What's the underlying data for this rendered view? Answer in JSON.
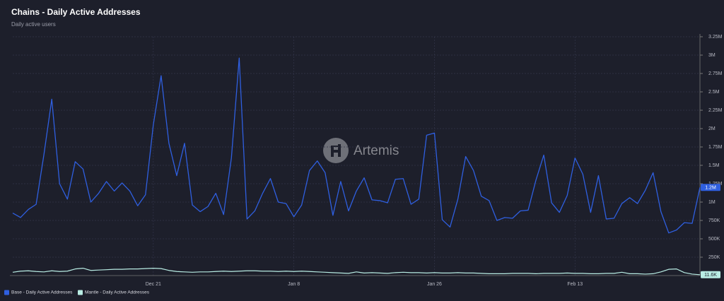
{
  "chart_data": {
    "type": "line",
    "title": "Chains - Daily Active Addresses",
    "subtitle": "Daily active users",
    "watermark": "Artemis",
    "categories": [
      null,
      null,
      null,
      null,
      null,
      null,
      null,
      null,
      null,
      null,
      null,
      null,
      null,
      null,
      null,
      null,
      null,
      null,
      "Dec 21",
      null,
      null,
      null,
      null,
      null,
      null,
      null,
      null,
      null,
      null,
      null,
      null,
      null,
      null,
      null,
      null,
      null,
      "Jan 8",
      null,
      null,
      null,
      null,
      null,
      null,
      null,
      null,
      null,
      null,
      null,
      null,
      null,
      null,
      null,
      null,
      null,
      "Jan 26",
      null,
      null,
      null,
      null,
      null,
      null,
      null,
      null,
      null,
      null,
      null,
      null,
      null,
      null,
      null,
      null,
      null,
      "Feb 13",
      null,
      null,
      null,
      null,
      null,
      null,
      null,
      null,
      null,
      null,
      null,
      null,
      null,
      null,
      null,
      null
    ],
    "series": [
      {
        "name": "Base - Daily Active Addresses",
        "color": "#2f5fe0",
        "values": [
          850000,
          790000,
          900000,
          970000,
          1650000,
          2400000,
          1250000,
          1040000,
          1550000,
          1450000,
          1000000,
          1120000,
          1280000,
          1150000,
          1260000,
          1150000,
          950000,
          1100000,
          2050000,
          2720000,
          1800000,
          1360000,
          1800000,
          960000,
          870000,
          940000,
          1120000,
          830000,
          1600000,
          2960000,
          770000,
          880000,
          1120000,
          1320000,
          1000000,
          980000,
          800000,
          960000,
          1430000,
          1560000,
          1400000,
          820000,
          1280000,
          880000,
          1150000,
          1330000,
          1030000,
          1020000,
          990000,
          1310000,
          1320000,
          970000,
          1040000,
          1910000,
          1940000,
          760000,
          660000,
          1040000,
          1620000,
          1430000,
          1080000,
          1020000,
          750000,
          790000,
          780000,
          880000,
          890000,
          1300000,
          1640000,
          990000,
          860000,
          1090000,
          1600000,
          1380000,
          860000,
          1360000,
          770000,
          780000,
          980000,
          1060000,
          980000,
          1160000,
          1400000,
          870000,
          580000,
          620000,
          720000,
          710000,
          1200000
        ],
        "value_labels": [
          null,
          null,
          null,
          null,
          null,
          null,
          null,
          null,
          null,
          null,
          null,
          null,
          null,
          null,
          null,
          null,
          null,
          null,
          null,
          null,
          null,
          null,
          null,
          null,
          null,
          null,
          null,
          null,
          null,
          null,
          null,
          null,
          null,
          null,
          null,
          null,
          null,
          null,
          null,
          null,
          null,
          null,
          null,
          null,
          null,
          null,
          null,
          null,
          null,
          null,
          null,
          null,
          null,
          null,
          null,
          null,
          null,
          null,
          null,
          null,
          null,
          null,
          null,
          null,
          null,
          null,
          null,
          null,
          null,
          null,
          null,
          null,
          null,
          null,
          null,
          null,
          null,
          null,
          null,
          null,
          null,
          null,
          null,
          null,
          null,
          null,
          null,
          null,
          "1.2M"
        ]
      },
      {
        "name": "Mantle - Daily Active Addresses",
        "color": "#b9ede4",
        "values": [
          45000,
          60000,
          65000,
          55000,
          50000,
          65000,
          55000,
          60000,
          90000,
          100000,
          70000,
          75000,
          80000,
          85000,
          85000,
          90000,
          90000,
          95000,
          100000,
          95000,
          70000,
          55000,
          50000,
          45000,
          50000,
          50000,
          55000,
          60000,
          55000,
          60000,
          65000,
          65000,
          60000,
          60000,
          55000,
          60000,
          55000,
          60000,
          55000,
          50000,
          45000,
          40000,
          35000,
          30000,
          50000,
          35000,
          40000,
          35000,
          30000,
          40000,
          45000,
          40000,
          40000,
          35000,
          40000,
          35000,
          35000,
          40000,
          35000,
          35000,
          30000,
          25000,
          25000,
          25000,
          30000,
          30000,
          30000,
          25000,
          30000,
          30000,
          30000,
          35000,
          30000,
          30000,
          25000,
          25000,
          30000,
          30000,
          45000,
          25000,
          25000,
          20000,
          25000,
          50000,
          85000,
          90000,
          40000,
          20000,
          11600
        ],
        "value_labels": [
          null,
          null,
          null,
          null,
          null,
          null,
          null,
          null,
          null,
          null,
          null,
          null,
          null,
          null,
          null,
          null,
          null,
          null,
          null,
          null,
          null,
          null,
          null,
          null,
          null,
          null,
          null,
          null,
          null,
          null,
          null,
          null,
          null,
          null,
          null,
          null,
          null,
          null,
          null,
          null,
          null,
          null,
          null,
          null,
          null,
          null,
          null,
          null,
          null,
          null,
          null,
          null,
          null,
          null,
          null,
          null,
          null,
          null,
          null,
          null,
          null,
          null,
          null,
          null,
          null,
          null,
          null,
          null,
          null,
          null,
          null,
          null,
          null,
          null,
          null,
          null,
          null,
          null,
          null,
          null,
          null,
          null,
          null,
          null,
          null,
          null,
          null,
          null,
          "11.6K"
        ]
      }
    ],
    "ylim": [
      0,
      3250000
    ],
    "yticks": [
      {
        "value": 250000,
        "label": "250K"
      },
      {
        "value": 500000,
        "label": "500K"
      },
      {
        "value": 750000,
        "label": "750K"
      },
      {
        "value": 1000000,
        "label": "1M"
      },
      {
        "value": 1250000,
        "label": "1.25M"
      },
      {
        "value": 1500000,
        "label": "1.5M"
      },
      {
        "value": 1750000,
        "label": "1.75M"
      },
      {
        "value": 2000000,
        "label": "2M"
      },
      {
        "value": 2250000,
        "label": "2.25M"
      },
      {
        "value": 2500000,
        "label": "2.5M"
      },
      {
        "value": 2750000,
        "label": "2.75M"
      },
      {
        "value": 3000000,
        "label": "3M"
      },
      {
        "value": 3250000,
        "label": "3.25M"
      }
    ],
    "grid": true
  }
}
